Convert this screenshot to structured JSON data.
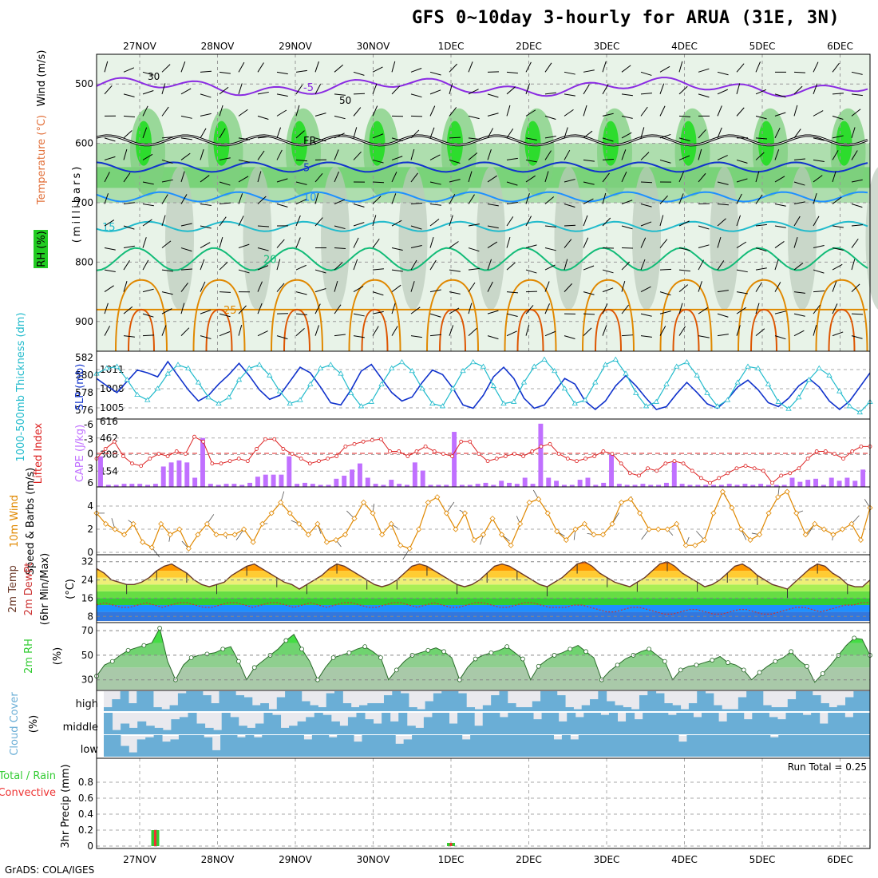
{
  "title": "GFS 0~10day 3-hourly for ARUA (31E, 3N)",
  "credit": "GrADS: COLA/IGES",
  "colors": {
    "temperature": "#7b1fa2",
    "rh_green": "#22dd22",
    "slp": "#1133cc",
    "thickness": "#22bbcc",
    "cape": "#c070ff",
    "lifted": "#dd2222",
    "wind10": "#e08800",
    "dewpt": "#cc3333",
    "rh2m": "#33cc33",
    "cloud": "#6aaed6",
    "precip_total": "#33cc33",
    "precip_conv": "#ee3333"
  },
  "chart_data": [
    {
      "type": "contour",
      "panel": "upper-air",
      "ylabel": "(millibars)",
      "legend_labels": [
        "Wind (m/s)",
        "Temperature (°C)",
        "RH (%)"
      ],
      "x_dates": [
        "27NOV",
        "28NOV",
        "29NOV",
        "30NOV",
        "1DEC",
        "2DEC",
        "3DEC",
        "4DEC",
        "5DEC",
        "6DEC"
      ],
      "y_ticks": [
        500,
        600,
        700,
        800,
        900
      ],
      "temperature_contours": [
        {
          "label": "-5",
          "level_mb": 505
        },
        {
          "label": "FR",
          "level_mb": 595
        },
        {
          "label": "5",
          "level_mb": 640
        },
        {
          "label": "10",
          "level_mb": 690
        },
        {
          "label": "15",
          "level_mb": 740
        },
        {
          "label": "20",
          "level_mb": 795
        },
        {
          "label": "25",
          "level_mb": 880
        }
      ],
      "rh_labels": [
        "30",
        "50"
      ]
    },
    {
      "type": "line",
      "panel": "slp-thickness",
      "ylabel_left": "1000-500mb Thickness (dm)",
      "ylabel_right": "SLP (mb)",
      "left_ticks": [
        "582",
        "580",
        "578",
        "576"
      ],
      "right_ticks": [
        "1011",
        "1008",
        "1005"
      ],
      "series": [
        {
          "name": "SLP (mb)",
          "values": [
            1009.5,
            1008.2,
            1007.0,
            1009.0,
            1011.0,
            1010.5,
            1009.8,
            1012.5,
            1010.0,
            1007.5,
            1005.5,
            1006.5,
            1008.5,
            1010.2,
            1012.2,
            1010.0,
            1007.5,
            1005.8,
            1006.5,
            1009.0,
            1011.5,
            1010.5,
            1008.0,
            1005.2,
            1004.8,
            1007.5,
            1010.8,
            1012.0,
            1009.5,
            1007.0,
            1005.5,
            1006.2,
            1008.8,
            1011.0,
            1010.2,
            1007.8,
            1004.8,
            1004.2,
            1006.5,
            1009.8,
            1011.5,
            1009.5,
            1006.0,
            1004.2,
            1004.8,
            1007.2,
            1009.5,
            1008.5,
            1005.5,
            1004.0,
            1005.5,
            1008.2,
            1010.0,
            1008.2,
            1006.0,
            1004.0,
            1004.5,
            1006.8,
            1008.8,
            1007.0,
            1005.0,
            1004.2,
            1005.8,
            1008.0,
            1009.2,
            1007.5,
            1005.2,
            1004.5,
            1006.0,
            1008.2,
            1009.5,
            1008.0,
            1005.5,
            1004.0,
            1005.5,
            1008.0,
            1010.5
          ]
        },
        {
          "name": "Thickness (dm)",
          "values": [
            580.2,
            580.8,
            581.0,
            579.5,
            577.8,
            577.2,
            578.5,
            580.2,
            581.2,
            580.8,
            579.2,
            577.5,
            576.8,
            577.5,
            579.5,
            580.8,
            581.2,
            580.0,
            578.2,
            576.8,
            577.2,
            579.0,
            580.8,
            581.2,
            580.2,
            578.0,
            576.5,
            577.0,
            579.0,
            580.8,
            581.5,
            580.5,
            578.5,
            576.8,
            576.5,
            578.5,
            580.5,
            581.5,
            581.0,
            578.8,
            576.8,
            577.0,
            579.2,
            581.0,
            581.8,
            580.5,
            578.5,
            576.8,
            577.2,
            579.2,
            581.2,
            581.8,
            580.2,
            578.0,
            576.5,
            577.0,
            579.0,
            581.0,
            581.5,
            580.0,
            578.0,
            576.5,
            577.2,
            579.2,
            581.0,
            580.8,
            579.0,
            577.0,
            576.2,
            577.5,
            579.5,
            580.8,
            580.0,
            578.2,
            576.5,
            575.8,
            577.0
          ]
        }
      ]
    },
    {
      "type": "bar-line",
      "panel": "cape-li",
      "ylabel_left": "Lifted Index",
      "ylabel_right": "CAPE (J/kg)",
      "left_ticks": [
        "-6",
        "-3",
        "0",
        "3",
        "6"
      ],
      "right_ticks": [
        "616",
        "462",
        "308",
        "154"
      ],
      "cape_values": [
        300,
        20,
        20,
        30,
        30,
        30,
        20,
        30,
        200,
        240,
        260,
        240,
        90,
        480,
        30,
        20,
        30,
        30,
        20,
        40,
        100,
        120,
        120,
        120,
        300,
        30,
        40,
        30,
        20,
        20,
        80,
        110,
        170,
        230,
        90,
        30,
        20,
        70,
        30,
        20,
        240,
        160,
        20,
        20,
        20,
        540,
        20,
        20,
        30,
        40,
        20,
        60,
        40,
        30,
        90,
        30,
        620,
        90,
        60,
        20,
        20,
        70,
        90,
        20,
        40,
        320,
        30,
        20,
        20,
        30,
        20,
        20,
        40,
        240,
        30,
        20,
        20,
        20,
        20,
        20,
        30,
        20,
        30,
        20,
        30,
        20,
        20,
        20,
        90,
        50,
        70,
        80,
        20,
        90,
        60,
        90,
        60,
        170
      ],
      "li_values": [
        1.0,
        -1.0,
        -2.5,
        0.5,
        2.0,
        2.5,
        1.0,
        0,
        0.5,
        -0.5,
        0,
        -3.5,
        -2.5,
        2.0,
        2.0,
        1.5,
        1.0,
        1.5,
        -1.0,
        -3.0,
        -3.0,
        -1.0,
        0,
        1.0,
        2.0,
        1.5,
        1.0,
        0.5,
        -1.5,
        -2.0,
        -2.5,
        -2.8,
        -3.0,
        -0.5,
        -0.5,
        0.5,
        -0.5,
        -1.5,
        -0.5,
        0.0,
        0.5,
        -2.5,
        -2.5,
        0.0,
        1.5,
        1.0,
        0.5,
        0.0,
        0.5,
        -0.5,
        -1.5,
        -2.0,
        0,
        1.0,
        1.5,
        1.0,
        0.5,
        -0.5,
        0.0,
        2.0,
        4.0,
        4.5,
        3.0,
        3.5,
        2.0,
        1.5,
        2.0,
        3.5,
        5.0,
        6.0,
        5.0,
        4.0,
        3.0,
        2.5,
        3.0,
        3.5,
        6.0,
        4.5,
        4.0,
        3.0,
        1.0,
        -0.5,
        -0.5,
        0.0,
        1.0,
        -0.5,
        -1.5,
        -1.5
      ]
    },
    {
      "type": "line",
      "panel": "wind10m",
      "ylabel": "10m Wind Speed & Barbs (m/s)",
      "y_ticks": [
        "4",
        "2",
        "0"
      ],
      "values": [
        3.5,
        2.5,
        2.0,
        1.5,
        2.5,
        0.8,
        0.3,
        2.5,
        1.5,
        2.0,
        0.2,
        1.5,
        2.5,
        1.5,
        1.5,
        1.5,
        2.0,
        0.8,
        2.5,
        3.5,
        4.5,
        3.5,
        2.5,
        1.5,
        2.5,
        0.8,
        1.0,
        1.5,
        3.0,
        4.5,
        3.5,
        1.5,
        2.5,
        0.5,
        0.2,
        2.0,
        4.5,
        5.0,
        3.5,
        2.0,
        3.5,
        1.0,
        1.5,
        3.0,
        1.5,
        0.5,
        2.5,
        4.5,
        4.8,
        3.5,
        1.8,
        1.0,
        2.0,
        2.5,
        1.5,
        1.5,
        2.5,
        4.5,
        4.8,
        3.5,
        2.0,
        2.0,
        2.0,
        2.5,
        0.5,
        0.5,
        1.0,
        3.5,
        5.5,
        4.0,
        2.0,
        1.0,
        1.5,
        3.5,
        5.0,
        5.5,
        3.5,
        1.5,
        2.5,
        2.0,
        1.5,
        2.0,
        2.5,
        1.0,
        4.0
      ]
    },
    {
      "type": "area",
      "panel": "temp-dew",
      "ylabel": "2m Temp 2m DewPt (6hr Min/Max) (°C)",
      "y_ticks": [
        "32",
        "24",
        "16",
        "8"
      ],
      "temp": [
        29,
        27,
        24,
        23,
        22,
        22,
        23,
        25,
        28,
        30,
        31,
        29,
        27,
        24,
        22,
        21,
        22,
        23,
        26,
        28,
        30,
        31,
        29,
        27,
        25,
        23,
        22,
        20,
        22,
        24,
        26,
        29,
        31,
        30,
        28,
        26,
        24,
        22,
        21,
        22,
        24,
        27,
        30,
        31,
        30,
        28,
        26,
        24,
        22,
        21,
        22,
        24,
        27,
        30,
        31,
        30,
        28,
        26,
        24,
        22,
        21,
        23,
        25,
        28,
        31,
        32,
        30,
        27,
        25,
        23,
        22,
        21,
        23,
        25,
        28,
        31,
        32,
        30,
        27,
        25,
        23,
        21,
        22,
        24,
        27,
        30,
        31,
        29,
        26,
        24,
        22,
        21,
        20,
        23,
        26,
        29,
        31,
        30,
        27,
        25,
        22,
        21,
        21,
        24
      ],
      "dew": [
        13,
        14,
        13,
        12,
        12,
        13,
        14,
        13,
        12,
        13,
        14,
        14,
        13,
        12,
        12,
        13,
        14,
        14,
        13,
        12,
        13,
        14,
        14,
        13,
        12,
        13,
        14,
        13,
        12,
        13,
        14,
        14,
        13,
        12,
        12,
        13,
        14,
        14,
        13,
        12,
        13,
        14,
        13,
        12,
        12,
        13,
        14,
        14,
        13,
        12,
        12,
        13,
        14,
        14,
        13,
        12,
        12,
        12,
        13,
        13,
        12,
        11,
        10,
        10,
        11,
        12,
        12,
        11,
        10,
        9,
        9,
        10,
        11,
        11,
        10,
        9,
        9,
        10,
        11,
        11,
        10,
        9,
        9,
        10,
        11,
        12,
        12,
        11,
        10,
        11,
        12,
        13,
        13,
        14,
        14
      ]
    },
    {
      "type": "area",
      "panel": "rh2m",
      "ylabel": "2m RH (%)",
      "y_ticks": [
        "70",
        "50",
        "30"
      ],
      "values": [
        33,
        42,
        45,
        50,
        54,
        56,
        58,
        60,
        72,
        45,
        30,
        42,
        48,
        50,
        51,
        52,
        55,
        57,
        45,
        30,
        40,
        45,
        50,
        55,
        62,
        67,
        55,
        45,
        30,
        40,
        48,
        50,
        52,
        55,
        57,
        53,
        48,
        30,
        38,
        45,
        50,
        52,
        54,
        56,
        53,
        48,
        30,
        40,
        47,
        50,
        52,
        54,
        57,
        52,
        47,
        30,
        41,
        46,
        50,
        52,
        55,
        58,
        53,
        48,
        30,
        37,
        42,
        47,
        50,
        53,
        55,
        50,
        45,
        30,
        38,
        41,
        42,
        44,
        46,
        49,
        44,
        42,
        38,
        30,
        36,
        41,
        45,
        48,
        53,
        46,
        41,
        28,
        35,
        42,
        50,
        58,
        64,
        63,
        50
      ]
    },
    {
      "type": "heatmap",
      "panel": "cloud",
      "ylabel": "Cloud Cover (%)",
      "layers": [
        "high",
        "middle",
        "low"
      ],
      "high": [
        0.2,
        0.6,
        1,
        0.4,
        1,
        1,
        0.2,
        0.1,
        0.3,
        0.9,
        1,
        1,
        0.8,
        0.4,
        1,
        1,
        0.8,
        0.7,
        0.3,
        0.4,
        0.1,
        0.7,
        1,
        1,
        0.5,
        0.3,
        0.2,
        0.9,
        1,
        0.4,
        0.2,
        0.3,
        0.4,
        0.4,
        0.8,
        1,
        0.9,
        0.2,
        0.1,
        0.5,
        0.9,
        1,
        1,
        0.9,
        0.2,
        0.1,
        0.3,
        0.8,
        1,
        0.4,
        0.2,
        0.2,
        0.5,
        1,
        1,
        0.8,
        0.2,
        0.1,
        0.3,
        0.6,
        1,
        0.5,
        0.3,
        0.2,
        0.1,
        0.8,
        1,
        0.9,
        0.4,
        0.3,
        0.1,
        0.4,
        1,
        0.9,
        0.3,
        0.1,
        0.1,
        0.7,
        1,
        1,
        0.3,
        0.2,
        0.2,
        0.6,
        1,
        1,
        0.8,
        0.4,
        0.2,
        0.3,
        0.7,
        1,
        1
      ],
      "middle": [
        1,
        0.2,
        0.5,
        0.3,
        0.6,
        0.4,
        0.3,
        0.2,
        0.7,
        0.8,
        1,
        0.5,
        0.3,
        0.2,
        1,
        0.8,
        0.4,
        0.3,
        0.5,
        1,
        0.9,
        0.3,
        0.4,
        0.6,
        0.8,
        1,
        0.9,
        0.6,
        0.4,
        0.8,
        1,
        0.7,
        0.5,
        1,
        0.6,
        1,
        0.4,
        0.3,
        0.8,
        1,
        1,
        0.5,
        1,
        1,
        0.4,
        1,
        1,
        0.8,
        1,
        1,
        1,
        0.7,
        1,
        1,
        0.6,
        1,
        0.8,
        1,
        1,
        0.9,
        1,
        0.6,
        1,
        0.7,
        1,
        1,
        1,
        0.9,
        1,
        1,
        0.8,
        1,
        1,
        0.6,
        1,
        1,
        0.7,
        1,
        1,
        0.8,
        0.7,
        1,
        1,
        0.9,
        1,
        0.5,
        1,
        1,
        0.8,
        1,
        1
      ],
      "low": [
        1,
        1,
        0.5,
        0.2,
        0.8,
        0.9,
        1,
        0.7,
        0.8,
        1,
        1,
        1,
        0.9,
        0.3,
        1,
        1,
        0.9,
        1,
        0.9,
        1,
        1,
        1,
        1,
        1,
        0.8,
        1,
        1,
        0.9,
        1,
        1,
        0.7,
        1,
        1,
        1,
        1,
        0.6,
        0.8,
        1,
        1,
        1,
        1,
        1,
        1,
        0.8,
        1,
        1,
        1,
        1,
        1,
        1,
        1,
        1,
        1,
        1,
        0.8,
        1,
        0.8,
        1,
        1,
        1,
        1,
        1,
        1,
        1,
        1,
        1,
        1,
        1,
        1,
        0.7,
        1,
        1,
        1,
        1,
        1,
        1,
        1,
        1,
        1,
        1,
        0.9,
        1,
        1,
        1,
        1,
        1,
        1,
        1,
        1,
        1,
        1,
        1
      ]
    },
    {
      "type": "bar",
      "panel": "precip",
      "ylabel": "3hr Precip (mm)",
      "legend": [
        "Total / Rain",
        "Convective"
      ],
      "run_total_label": "Run Total = 0.25",
      "y_ticks": [
        "0.8",
        "0.6",
        "0.4",
        "0.2",
        "0"
      ],
      "bars": [
        {
          "date": "27NOV",
          "offset_days": 0.2,
          "total": 0.2,
          "convective": 0.2
        },
        {
          "date": "1DEC",
          "offset_days": 0.0,
          "total": 0.04,
          "convective": 0.04
        }
      ]
    }
  ]
}
